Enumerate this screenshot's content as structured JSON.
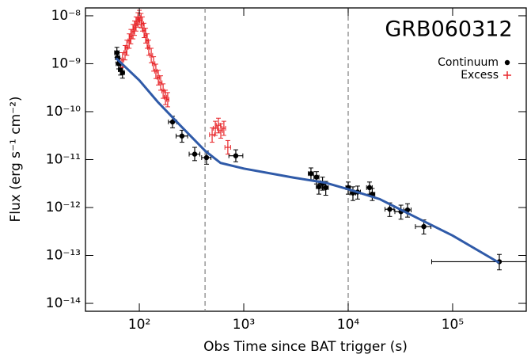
{
  "chart_data": {
    "type": "scatter",
    "title": "GRB060312",
    "xlabel": "Obs Time since BAT trigger (s)",
    "ylabel": "Flux (erg s⁻¹ cm⁻²)",
    "xlog": true,
    "ylog": true,
    "xlim": [
      30.5,
      507000
    ],
    "ylim": [
      6.84e-15,
      1.46e-08
    ],
    "xticks": [
      {
        "value": 100,
        "label": "10²"
      },
      {
        "value": 1000,
        "label": "10³"
      },
      {
        "value": 10000,
        "label": "10⁴"
      },
      {
        "value": 100000,
        "label": "10⁵"
      }
    ],
    "yticks": [
      {
        "value": 1e-14,
        "label": "10⁻¹⁴"
      },
      {
        "value": 1e-13,
        "label": "10⁻¹³"
      },
      {
        "value": 1e-12,
        "label": "10⁻¹²"
      },
      {
        "value": 1e-11,
        "label": "10⁻¹¹"
      },
      {
        "value": 1e-10,
        "label": "10⁻¹⁰"
      },
      {
        "value": 1e-09,
        "label": "10⁻⁹"
      },
      {
        "value": 1e-08,
        "label": "10⁻⁸"
      }
    ],
    "legend": "upper right",
    "vlines": [
      426,
      10000
    ],
    "vline_color": "#888888",
    "series": [
      {
        "name": "Continuum",
        "color": "#000000",
        "marker": "dot",
        "x": [
          61,
          62,
          63.5,
          66,
          69,
          208,
          256,
          339,
          440,
          839,
          4400,
          4970,
          5240,
          5680,
          6100,
          10000,
          11100,
          12300,
          16000,
          17000,
          25000,
          32000,
          37000,
          53000,
          280000
        ],
        "xlo": [
          58,
          59,
          60,
          63,
          66,
          190,
          225,
          300,
          395,
          720,
          4150,
          4700,
          4950,
          5350,
          5750,
          9500,
          10400,
          11500,
          15000,
          16000,
          22500,
          28000,
          34000,
          44000,
          63000
        ],
        "xhi": [
          64,
          65,
          67,
          69,
          72,
          228,
          290,
          380,
          485,
          980,
          4650,
          5250,
          5550,
          6000,
          6450,
          10500,
          11800,
          13100,
          17000,
          18000,
          27500,
          36000,
          40000,
          62000,
          650000
        ],
        "values": [
          1.7e-09,
          1.33e-09,
          1e-09,
          7.5e-10,
          6.5e-10,
          6.1e-11,
          3.1e-11,
          1.3e-11,
          1.1e-11,
          1.2e-11,
          5.1e-12,
          4.3e-12,
          2.7e-12,
          3.2e-12,
          2.6e-12,
          2.6e-12,
          2e-12,
          2.1e-12,
          2.6e-12,
          1.9e-12,
          9.2e-13,
          8.2e-13,
          8.9e-13,
          4e-13,
          7.4e-14
        ],
        "ylo": [
          1.35e-09,
          1.05e-09,
          7.8e-10,
          5.8e-10,
          5e-10,
          4.6e-11,
          2.3e-11,
          9.5e-12,
          8e-12,
          9e-12,
          3.8e-12,
          3.1e-12,
          1.9e-12,
          2.3e-12,
          1.8e-12,
          1.9e-12,
          1.4e-12,
          1.5e-12,
          1.9e-12,
          1.4e-12,
          6.5e-13,
          5.7e-13,
          6.3e-13,
          2.8e-13,
          5e-14
        ],
        "yhi": [
          2.2e-09,
          1.7e-09,
          1.3e-09,
          9.6e-10,
          8.4e-10,
          8e-11,
          4.1e-11,
          1.8e-11,
          1.5e-11,
          1.6e-11,
          6.7e-12,
          5.6e-12,
          3.6e-12,
          4.3e-12,
          3.5e-12,
          3.4e-12,
          2.7e-12,
          2.8e-12,
          3.4e-12,
          2.5e-12,
          1.25e-12,
          1.12e-12,
          1.2e-12,
          5.5e-13,
          1.05e-13
        ]
      },
      {
        "name": "Excess",
        "color": "#e8262a",
        "marker": "plus",
        "x": [
          69,
          73,
          76,
          80,
          83,
          87,
          90,
          93,
          97,
          100,
          104,
          107,
          111,
          115,
          119,
          123,
          130,
          137,
          144,
          152,
          160,
          169,
          178,
          187,
          498,
          534,
          572,
          603,
          645,
          704
        ],
        "xlo": [
          67,
          71,
          74,
          78,
          81,
          85,
          88,
          91,
          95,
          97,
          101,
          104,
          108,
          112,
          116,
          120,
          126,
          133,
          140,
          148,
          155,
          164,
          173,
          182,
          470,
          510,
          545,
          580,
          620,
          660
        ],
        "xhi": [
          71,
          75,
          78,
          82,
          85,
          89,
          92,
          95,
          99,
          103,
          107,
          110,
          114,
          118,
          122,
          126,
          134,
          141,
          148,
          156,
          165,
          174,
          183,
          192,
          526,
          558,
          599,
          626,
          670,
          748
        ],
        "values": [
          1.2e-09,
          1.7e-09,
          2.2e-09,
          3e-09,
          3.7e-09,
          4.7e-09,
          5.6e-09,
          6.8e-09,
          8.3e-09,
          9.3e-09,
          8e-09,
          6.8e-09,
          5e-09,
          3.9e-09,
          3e-09,
          2.2e-09,
          1.5e-09,
          1e-09,
          7e-10,
          5.2e-10,
          4e-10,
          2.7e-10,
          2e-10,
          1.8e-10,
          3.3e-11,
          4.5e-11,
          5.2e-11,
          4e-11,
          4.5e-11,
          1.8e-11
        ],
        "ylo": [
          8.4e-10,
          1.2e-09,
          1.5e-09,
          2.1e-09,
          2.6e-09,
          3.3e-09,
          3.9e-09,
          4.8e-09,
          5.8e-09,
          6.5e-09,
          5.6e-09,
          4.8e-09,
          3.5e-09,
          2.7e-09,
          2.1e-09,
          1.5e-09,
          1.05e-09,
          7e-10,
          4.9e-10,
          3.6e-10,
          2.8e-10,
          1.9e-10,
          1.4e-10,
          1.26e-10,
          2.3e-11,
          3.2e-11,
          3.6e-11,
          2.8e-11,
          3.2e-11,
          1.3e-11
        ],
        "yhi": [
          1.7e-09,
          2.4e-09,
          3.1e-09,
          4.2e-09,
          5.2e-09,
          6.6e-09,
          7.8e-09,
          9.5e-09,
          1.16e-08,
          1.3e-08,
          1.12e-08,
          9.5e-09,
          7e-09,
          5.5e-09,
          4.2e-09,
          3.1e-09,
          2.1e-09,
          1.4e-09,
          9.8e-10,
          7.3e-10,
          5.6e-10,
          3.8e-10,
          2.8e-10,
          2.5e-10,
          4.6e-11,
          6.3e-11,
          7.3e-11,
          5.6e-11,
          6.3e-11,
          2.5e-11
        ]
      },
      {
        "type": "line",
        "color": "#2f5aa8",
        "x": [
          60,
          100,
          150,
          250,
          430,
          600,
          1000,
          3000,
          6000,
          10000,
          20000,
          50000,
          100000,
          280000
        ],
        "values": [
          1.3e-09,
          4.5e-10,
          1.6e-10,
          5e-11,
          1.5e-11,
          8.5e-12,
          6.5e-12,
          4.2e-12,
          3.3e-12,
          2.4e-12,
          1.5e-12,
          5.5e-13,
          2.6e-13,
          7e-14
        ]
      }
    ]
  }
}
